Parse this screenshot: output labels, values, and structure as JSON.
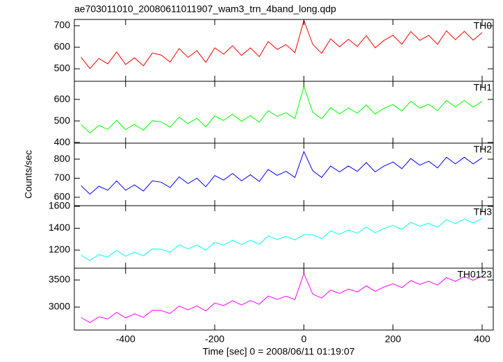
{
  "chart_data": [
    {
      "type": "line",
      "title": "ae703011010_20080611011907_wam3_trn_4band_long.qdp",
      "x": [
        -500,
        -480,
        -460,
        -440,
        -420,
        -400,
        -380,
        -360,
        -340,
        -320,
        -300,
        -280,
        -260,
        -240,
        -220,
        -200,
        -180,
        -160,
        -140,
        -120,
        -100,
        -80,
        -60,
        -40,
        -20,
        0,
        20,
        40,
        60,
        80,
        100,
        120,
        140,
        160,
        180,
        200,
        220,
        240,
        260,
        280,
        300,
        320,
        340,
        360,
        380,
        400
      ],
      "series": [
        {
          "name": "TH0",
          "color": "#ff0000",
          "values": [
            554,
            501,
            548,
            523,
            578,
            520,
            551,
            514,
            573,
            564,
            531,
            594,
            553,
            584,
            530,
            597,
            568,
            607,
            562,
            597,
            556,
            627,
            590,
            612,
            575,
            725,
            613,
            572,
            639,
            602,
            637,
            604,
            654,
            597,
            632,
            655,
            614,
            673,
            632,
            655,
            614,
            676,
            635,
            674,
            633,
            668
          ]
        }
      ],
      "xlim": [
        -515,
        425
      ],
      "xticks": [
        -400,
        -200,
        0,
        200,
        400
      ],
      "ylim": [
        442,
        729
      ],
      "yticks": [
        500,
        600,
        700
      ]
    },
    {
      "type": "line",
      "x": [
        -500,
        -480,
        -460,
        -440,
        -420,
        -400,
        -380,
        -360,
        -340,
        -320,
        -300,
        -280,
        -260,
        -240,
        -220,
        -200,
        -180,
        -160,
        -140,
        -120,
        -100,
        -80,
        -60,
        -40,
        -20,
        0,
        20,
        40,
        60,
        80,
        100,
        120,
        140,
        160,
        180,
        200,
        220,
        240,
        260,
        280,
        300,
        320,
        340,
        360,
        380,
        400
      ],
      "series": [
        {
          "name": "TH1",
          "color": "#00ff00",
          "values": [
            483,
            444,
            479,
            461,
            503,
            460,
            484,
            457,
            501,
            495,
            471,
            518,
            488,
            512,
            472,
            523,
            502,
            531,
            498,
            525,
            494,
            548,
            521,
            538,
            511,
            660,
            540,
            510,
            561,
            533,
            560,
            536,
            574,
            532,
            559,
            576,
            546,
            591,
            560,
            578,
            548,
            595,
            565,
            595,
            564,
            591
          ]
        }
      ],
      "xlim": [
        -515,
        425
      ],
      "xticks": [
        -400,
        -200,
        0,
        200,
        400
      ],
      "ylim": [
        397,
        684
      ],
      "yticks": [
        400,
        500,
        600
      ]
    },
    {
      "type": "line",
      "ylabel": "Counts/sec",
      "x": [
        -500,
        -480,
        -460,
        -440,
        -420,
        -400,
        -380,
        -360,
        -340,
        -320,
        -300,
        -280,
        -260,
        -240,
        -220,
        -200,
        -180,
        -160,
        -140,
        -120,
        -100,
        -80,
        -60,
        -40,
        -20,
        0,
        20,
        40,
        60,
        80,
        100,
        120,
        140,
        160,
        180,
        200,
        220,
        240,
        260,
        280,
        300,
        320,
        340,
        360,
        380,
        400
      ],
      "series": [
        {
          "name": "TH2",
          "color": "#0000ff",
          "values": [
            661,
            616,
            658,
            637,
            686,
            637,
            665,
            633,
            686,
            679,
            651,
            707,
            672,
            700,
            655,
            714,
            690,
            725,
            686,
            718,
            683,
            746,
            715,
            736,
            704,
            840,
            739,
            704,
            764,
            733,
            764,
            736,
            782,
            733,
            764,
            785,
            750,
            803,
            768,
            789,
            754,
            810,
            775,
            810,
            775,
            807
          ]
        }
      ],
      "xlim": [
        -515,
        425
      ],
      "xticks": [
        -400,
        -200,
        0,
        200,
        400
      ],
      "ylim": [
        556,
        884
      ],
      "yticks": [
        600,
        700,
        800
      ]
    },
    {
      "type": "line",
      "x": [
        -500,
        -480,
        -460,
        -440,
        -420,
        -400,
        -380,
        -360,
        -340,
        -320,
        -300,
        -280,
        -260,
        -240,
        -220,
        -200,
        -180,
        -160,
        -140,
        -120,
        -100,
        -80,
        -60,
        -40,
        -20,
        0,
        20,
        40,
        60,
        80,
        100,
        120,
        140,
        160,
        180,
        200,
        220,
        240,
        260,
        280,
        300,
        320,
        340,
        360,
        380,
        400
      ],
      "series": [
        {
          "name": "TH3",
          "color": "#00ffff",
          "values": [
            1154,
            1106,
            1158,
            1137,
            1197,
            1145,
            1181,
            1148,
            1212,
            1208,
            1180,
            1248,
            1211,
            1247,
            1199,
            1271,
            1246,
            1290,
            1250,
            1290,
            1254,
            1329,
            1297,
            1325,
            1293,
            1340,
            1340,
            1304,
            1376,
            1344,
            1383,
            1355,
            1411,
            1359,
            1398,
            1426,
            1390,
            1454,
            1418,
            1445,
            1409,
            1477,
            1441,
            1484,
            1448,
            1488
          ]
        }
      ],
      "xlim": [
        -515,
        425
      ],
      "xticks": [
        -400,
        -200,
        0,
        200,
        400
      ],
      "ylim": [
        1035,
        1606
      ],
      "yticks": [
        1200,
        1400,
        1600
      ]
    },
    {
      "type": "line",
      "xlabel": "Time [sec] 0 = 2008/06/11 01:19:07",
      "x": [
        -500,
        -480,
        -460,
        -440,
        -420,
        -400,
        -380,
        -360,
        -340,
        -320,
        -300,
        -280,
        -260,
        -240,
        -220,
        -200,
        -180,
        -160,
        -140,
        -120,
        -100,
        -80,
        -60,
        -40,
        -20,
        0,
        20,
        40,
        60,
        80,
        100,
        120,
        140,
        160,
        180,
        200,
        220,
        240,
        260,
        280,
        300,
        320,
        340,
        360,
        380,
        400
      ],
      "series": [
        {
          "name": "TH0123",
          "color": "#ff00ff",
          "values": [
            2808,
            2714,
            2820,
            2781,
            2903,
            2801,
            2875,
            2812,
            2942,
            2936,
            2882,
            3020,
            2949,
            3023,
            2929,
            3075,
            3028,
            3118,
            3040,
            3122,
            3052,
            3205,
            3143,
            3201,
            3139,
            3620,
            3238,
            3168,
            3314,
            3252,
            3333,
            3279,
            3393,
            3291,
            3372,
            3430,
            3360,
            3490,
            3420,
            3477,
            3407,
            3545,
            3475,
            3564,
            3494,
            3576
          ]
        }
      ],
      "xlim": [
        -515,
        425
      ],
      "xticks": [
        -400,
        -200,
        0,
        200,
        400
      ],
      "ylim": [
        2577,
        3718
      ],
      "yticks": [
        3000,
        3500
      ]
    }
  ]
}
